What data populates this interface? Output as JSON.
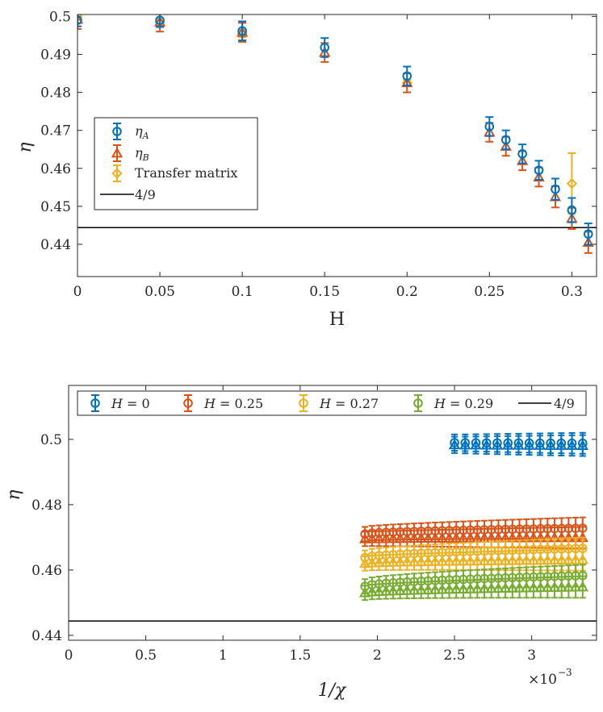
{
  "chart_data": [
    {
      "type": "scatter",
      "xlabel": "H",
      "ylabel": "η",
      "xlim": [
        0,
        0.315
      ],
      "ylim": [
        0.4315,
        0.5005
      ],
      "xticks": [
        0,
        0.05,
        0.1,
        0.15,
        0.2,
        0.25,
        0.3
      ],
      "xtick_labels": [
        "0",
        "0.05",
        "0.1",
        "0.15",
        "0.2",
        "0.25",
        "0.3"
      ],
      "yticks": [
        0.44,
        0.45,
        0.46,
        0.47,
        0.48,
        0.49,
        0.5
      ],
      "ytick_labels": [
        "0.44",
        "0.45",
        "0.46",
        "0.47",
        "0.48",
        "0.49",
        "0.5"
      ],
      "reference_line": {
        "label": "4/9",
        "value": 0.4444
      },
      "legend_position": "left-middle",
      "series": [
        {
          "name": "η_A",
          "sub": "A",
          "marker": "circle",
          "color": "#0072BD",
          "x": [
            0,
            0.05,
            0.1,
            0.15,
            0.2,
            0.25,
            0.26,
            0.27,
            0.28,
            0.29,
            0.3,
            0.31
          ],
          "y": [
            0.499,
            0.499,
            0.4962,
            0.4918,
            0.4843,
            0.471,
            0.4675,
            0.4638,
            0.4595,
            0.4545,
            0.449,
            0.4427
          ],
          "err": [
            0.0016,
            0.0018,
            0.0025,
            0.0025,
            0.0025,
            0.0025,
            0.0025,
            0.0025,
            0.0025,
            0.0028,
            0.0032,
            0.0028
          ]
        },
        {
          "name": "η_B",
          "sub": "B",
          "marker": "triangle",
          "color": "#D95319",
          "x": [
            0,
            0.05,
            0.1,
            0.15,
            0.2,
            0.25,
            0.26,
            0.27,
            0.28,
            0.29,
            0.3,
            0.31
          ],
          "y": [
            0.4992,
            0.4985,
            0.4958,
            0.4905,
            0.4825,
            0.4695,
            0.4658,
            0.462,
            0.4577,
            0.4525,
            0.4468,
            0.4405
          ],
          "err": [
            0.0025,
            0.0025,
            0.0025,
            0.0025,
            0.0025,
            0.0025,
            0.0025,
            0.0025,
            0.0025,
            0.0028,
            0.0028,
            0.0028
          ]
        },
        {
          "name": "Transfer matrix",
          "marker": "diamond",
          "color": "#EDB120",
          "x": [
            0,
            0.05,
            0.1,
            0.2,
            0.3
          ],
          "y": [
            0.5,
            0.4985,
            0.4955,
            0.4825,
            0.456
          ],
          "err": [
            0.001,
            0.001,
            0.001,
            0.0008,
            0.008
          ]
        }
      ]
    },
    {
      "type": "scatter",
      "xlabel": "1/χ",
      "ylabel": "η",
      "exponent_label": "×10",
      "exponent_power": "−3",
      "xlim": [
        0,
        3.42
      ],
      "ylim": [
        0.4385,
        0.5165
      ],
      "xticks": [
        0,
        0.5,
        1,
        1.5,
        2,
        2.5,
        3
      ],
      "xtick_labels": [
        "0",
        "0.5",
        "1",
        "1.5",
        "2",
        "2.5",
        "3"
      ],
      "yticks": [
        0.44,
        0.46,
        0.48,
        0.5
      ],
      "ytick_labels": [
        "0.44",
        "0.46",
        "0.48",
        "0.5"
      ],
      "reference_line": {
        "label": "4/9",
        "value": 0.4444
      },
      "legend_position": "top",
      "series": [
        {
          "name": "H = 0",
          "hname": "H",
          "hval": " = 0",
          "color": "#0072BD",
          "x_start": 2.5,
          "x_end": 3.33,
          "n": 13,
          "circle_y_start": 0.499,
          "circle_y_end": 0.4988,
          "tri_y_start": 0.4983,
          "tri_y_end": 0.4981,
          "err_start": 0.0025,
          "err_end": 0.0032
        },
        {
          "name": "H = 0.25",
          "hname": "H",
          "hval": " = 0.25",
          "color": "#D95319",
          "x_start": 1.92,
          "x_end": 3.33,
          "n": 32,
          "circle_y_start": 0.471,
          "circle_y_end": 0.4728,
          "tri_y_start": 0.4695,
          "tri_y_end": 0.4699,
          "err_start": 0.0022,
          "err_end": 0.0033
        },
        {
          "name": "H = 0.27",
          "hname": "H",
          "hval": " = 0.27",
          "color": "#EDB120",
          "x_start": 1.92,
          "x_end": 3.33,
          "n": 32,
          "circle_y_start": 0.4638,
          "circle_y_end": 0.4666,
          "tri_y_start": 0.462,
          "tri_y_end": 0.4631,
          "err_start": 0.0022,
          "err_end": 0.0033
        },
        {
          "name": "H = 0.29",
          "hname": "H",
          "hval": " = 0.29",
          "color": "#77AC30",
          "x_start": 1.92,
          "x_end": 3.33,
          "n": 32,
          "circle_y_start": 0.455,
          "circle_y_end": 0.4583,
          "tri_y_start": 0.453,
          "tri_y_end": 0.4548,
          "err_start": 0.0022,
          "err_end": 0.0033
        }
      ]
    }
  ]
}
